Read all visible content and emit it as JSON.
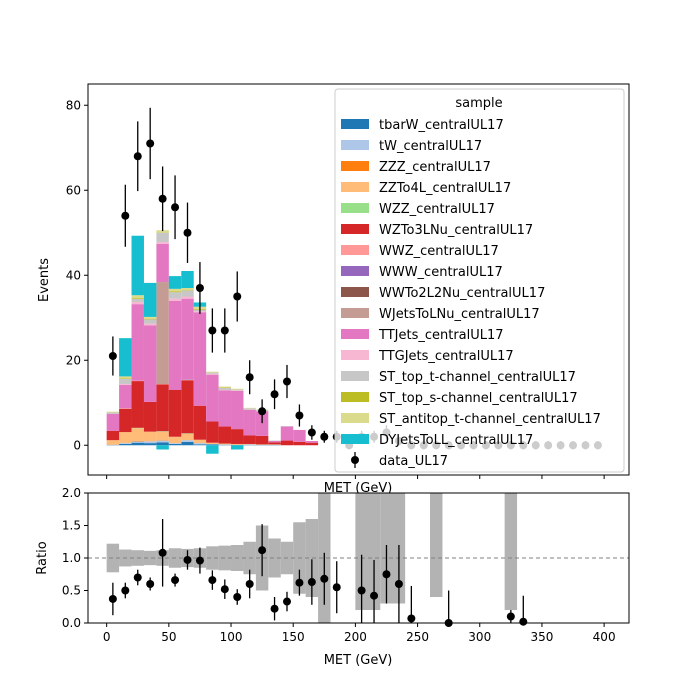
{
  "chart_data": [
    {
      "type": "bar",
      "subtype": "stacked-step-histogram-with-data-points",
      "ylabel": "Events",
      "xlabel": "MET (GeV)",
      "xlim": [
        -15,
        420
      ],
      "ylim": [
        -7,
        85
      ],
      "yticks": [
        0,
        20,
        40,
        60,
        80
      ],
      "legend": {
        "title": "sample",
        "placement": "top-right"
      },
      "bin_edges": [
        0,
        10,
        20,
        30,
        40,
        50,
        60,
        70,
        80,
        90,
        100,
        110,
        120,
        130,
        140,
        150,
        160,
        170,
        180
      ],
      "series": [
        {
          "name": "tbarW_centralUL17",
          "color": "#1f77b4",
          "values": [
            0.1,
            0.3,
            0.6,
            0.5,
            0.7,
            0.3,
            0.8,
            0.2,
            0.2,
            0.1,
            0.1,
            0.1,
            0.1,
            0.1,
            0,
            0,
            0,
            0
          ]
        },
        {
          "name": "tW_centralUL17",
          "color": "#aec7e8",
          "values": [
            0,
            0.2,
            0.3,
            0.4,
            0.4,
            0.2,
            0.4,
            0.3,
            0.1,
            0.1,
            0,
            0.1,
            0,
            0,
            0,
            0,
            0,
            0
          ]
        },
        {
          "name": "ZZZ_centralUL17",
          "color": "#ff7f0e",
          "values": [
            0,
            0,
            0.1,
            0,
            0.1,
            0,
            0,
            0,
            0,
            0,
            0,
            0,
            0,
            0,
            0,
            0,
            0,
            0
          ]
        },
        {
          "name": "ZZTo4L_centralUL17",
          "color": "#ffbb78",
          "values": [
            1.1,
            2.6,
            3.0,
            2.3,
            2.0,
            1.5,
            1.5,
            0.8,
            0.3,
            0.2,
            0.2,
            0.1,
            0.1,
            0.1,
            0,
            0,
            0,
            0
          ]
        },
        {
          "name": "WZZ_centralUL17",
          "color": "#98df8a",
          "values": [
            0,
            0,
            0.1,
            0,
            0.1,
            0,
            0.1,
            0,
            0,
            0,
            0,
            0,
            0,
            0,
            0,
            0,
            0,
            0
          ]
        },
        {
          "name": "WZTo3LNu_centralUL17",
          "color": "#d62728",
          "values": [
            2.2,
            5.5,
            11.0,
            7.0,
            11.0,
            11.0,
            12.5,
            8.0,
            5.0,
            4.0,
            3.5,
            2.0,
            2.0,
            0.5,
            1.1,
            0.8,
            0.6,
            0
          ]
        },
        {
          "name": "WWZ_centralUL17",
          "color": "#ff9896",
          "values": [
            0,
            0.1,
            0.1,
            0,
            0.1,
            0,
            0.1,
            0,
            0,
            0,
            0,
            0,
            0,
            0,
            0,
            0,
            0,
            0
          ]
        },
        {
          "name": "WWW_centralUL17",
          "color": "#9467bd",
          "values": [
            0,
            0,
            0,
            0,
            0,
            0,
            0.1,
            0,
            0,
            0,
            0,
            0,
            0,
            0,
            0,
            0,
            0,
            0
          ]
        },
        {
          "name": "WWTo2L2Nu_centralUL17",
          "color": "#8c564b",
          "values": [
            0,
            0,
            0,
            0,
            0,
            0,
            0,
            0,
            0,
            0,
            0,
            0,
            0,
            0,
            0,
            0,
            0,
            0
          ]
        },
        {
          "name": "WJetsToLNu_centralUL17",
          "color": "#c49c94",
          "values": [
            0,
            0,
            0,
            0,
            24.0,
            0,
            0,
            0,
            0,
            0,
            0,
            0,
            0,
            0,
            0,
            0,
            0,
            0
          ]
        },
        {
          "name": "TTJets_centralUL17",
          "color": "#e377c2",
          "values": [
            4.0,
            5.5,
            18.0,
            18.0,
            9.0,
            21.0,
            19.0,
            22.0,
            11.0,
            8.5,
            9.0,
            6.0,
            5.8,
            0.3,
            3.3,
            2.8,
            0.4,
            0
          ]
        },
        {
          "name": "TTGJets_centralUL17",
          "color": "#f7b6d2",
          "values": [
            0,
            0.2,
            0.5,
            0.4,
            0.4,
            0.5,
            0.5,
            0.2,
            0.2,
            0.1,
            0.1,
            0.1,
            0.1,
            0,
            0,
            0,
            0,
            0
          ]
        },
        {
          "name": "ST_top_t-channel_centralUL17",
          "color": "#c7c7c7",
          "values": [
            0.3,
            1.2,
            0.7,
            1.0,
            2.2,
            1.5,
            1.4,
            0.4,
            0.3,
            0.5,
            0.2,
            0.3,
            0.2,
            0.1,
            0.1,
            0,
            0,
            0
          ]
        },
        {
          "name": "ST_top_s-channel_centralUL17",
          "color": "#bcbd22",
          "values": [
            0,
            0.1,
            0.2,
            0.1,
            0.1,
            0.2,
            0.1,
            0.2,
            0,
            0.1,
            0,
            0,
            0,
            0,
            0,
            0,
            0,
            0
          ]
        },
        {
          "name": "ST_antitop_t-channel_centralUL17",
          "color": "#dbdb8d",
          "values": [
            0.2,
            0.5,
            0.7,
            0.5,
            0.5,
            0.6,
            0.5,
            0.5,
            0.2,
            0.2,
            0.2,
            0.1,
            0.1,
            0,
            0,
            0,
            0,
            0
          ]
        },
        {
          "name": "DYJetsToLL_centralUL17",
          "color": "#17becf",
          "values": [
            0,
            9.0,
            14.0,
            8.0,
            -1.0,
            3.0,
            4.0,
            1.0,
            -2.0,
            0,
            -1.0,
            0,
            0,
            0,
            0,
            0,
            0,
            0
          ]
        }
      ],
      "data_series": {
        "name": "data_UL17",
        "color": "#000000",
        "x": [
          5,
          15,
          25,
          35,
          45,
          55,
          65,
          75,
          85,
          95,
          105,
          115,
          125,
          135,
          145,
          155,
          165,
          175,
          185,
          195,
          205,
          215,
          225,
          235,
          245,
          255,
          265,
          275,
          285,
          295,
          305,
          315,
          325,
          335,
          345,
          355,
          365,
          375,
          385,
          395
        ],
        "y": [
          21,
          54,
          68,
          71,
          58,
          56,
          50,
          37,
          27,
          27,
          35,
          16,
          8,
          12,
          15,
          7,
          3,
          2,
          2,
          0,
          2,
          2,
          3,
          1,
          0,
          0,
          0,
          0,
          0,
          0,
          0,
          0,
          0,
          0,
          0,
          0,
          0,
          0,
          0,
          0
        ],
        "yerr": [
          4.6,
          7.3,
          8.2,
          8.4,
          7.6,
          7.5,
          7.1,
          6.1,
          5.2,
          5.2,
          5.9,
          4.0,
          2.8,
          3.5,
          3.9,
          2.6,
          1.7,
          1.4,
          1.4,
          1.0,
          1.4,
          1.4,
          1.7,
          1.0,
          1.0,
          1.0,
          1.0,
          1.0,
          1.0,
          1.0,
          1.0,
          1.0,
          1.0,
          1.0,
          1.0,
          1.0,
          1.0,
          1.0,
          1.0,
          1.0
        ]
      }
    },
    {
      "type": "scatter",
      "subtype": "ratio-panel",
      "ylabel": "Ratio",
      "xlabel": "MET (GeV)",
      "xlim": [
        -15,
        420
      ],
      "ylim": [
        0,
        2.0
      ],
      "xticks": [
        0,
        50,
        100,
        150,
        200,
        250,
        300,
        350,
        400
      ],
      "yticks": [
        "0.0",
        "0.5",
        "1.0",
        "1.5",
        "2.0"
      ],
      "reference_line": 1.0,
      "uncertainty_band": {
        "color": "#b3b3b3",
        "bins": [
          {
            "x0": 0,
            "x1": 10,
            "lo": 0.78,
            "hi": 1.22
          },
          {
            "x0": 10,
            "x1": 20,
            "lo": 0.87,
            "hi": 1.13
          },
          {
            "x0": 20,
            "x1": 30,
            "lo": 0.88,
            "hi": 1.12
          },
          {
            "x0": 30,
            "x1": 40,
            "lo": 0.89,
            "hi": 1.11
          },
          {
            "x0": 40,
            "x1": 50,
            "lo": 0.88,
            "hi": 1.12
          },
          {
            "x0": 50,
            "x1": 60,
            "lo": 0.85,
            "hi": 1.15
          },
          {
            "x0": 60,
            "x1": 70,
            "lo": 0.86,
            "hi": 1.14
          },
          {
            "x0": 70,
            "x1": 80,
            "lo": 0.85,
            "hi": 1.15
          },
          {
            "x0": 80,
            "x1": 90,
            "lo": 0.82,
            "hi": 1.18
          },
          {
            "x0": 90,
            "x1": 100,
            "lo": 0.81,
            "hi": 1.19
          },
          {
            "x0": 100,
            "x1": 110,
            "lo": 0.8,
            "hi": 1.2
          },
          {
            "x0": 110,
            "x1": 120,
            "lo": 0.75,
            "hi": 1.25
          },
          {
            "x0": 120,
            "x1": 130,
            "lo": 0.5,
            "hi": 1.5
          },
          {
            "x0": 130,
            "x1": 140,
            "lo": 0.7,
            "hi": 1.3
          },
          {
            "x0": 140,
            "x1": 150,
            "lo": 0.75,
            "hi": 1.25
          },
          {
            "x0": 150,
            "x1": 160,
            "lo": 0.45,
            "hi": 1.55
          },
          {
            "x0": 160,
            "x1": 170,
            "lo": 0.4,
            "hi": 1.6
          },
          {
            "x0": 170,
            "x1": 180,
            "lo": 0,
            "hi": 2.0
          },
          {
            "x0": 200,
            "x1": 220,
            "lo": 0.2,
            "hi": 2.0
          },
          {
            "x0": 220,
            "x1": 240,
            "lo": 0.3,
            "hi": 2.0
          },
          {
            "x0": 260,
            "x1": 270,
            "lo": 0.4,
            "hi": 2.0
          },
          {
            "x0": 320,
            "x1": 330,
            "lo": 0.2,
            "hi": 2.0
          }
        ]
      },
      "data_series": {
        "name": "data_UL17",
        "x": [
          5,
          15,
          25,
          35,
          45,
          55,
          65,
          75,
          85,
          95,
          105,
          115,
          125,
          135,
          145,
          155,
          165,
          175,
          185,
          205,
          215,
          225,
          235,
          245,
          275,
          325,
          335
        ],
        "y": [
          0.37,
          0.5,
          0.7,
          0.6,
          1.08,
          0.66,
          0.97,
          0.96,
          0.66,
          0.52,
          0.4,
          0.6,
          1.12,
          0.22,
          0.33,
          0.62,
          0.63,
          0.68,
          0.55,
          0.5,
          0.42,
          0.75,
          0.6,
          0.07,
          0.0,
          0.1,
          0.02
        ],
        "yerr": [
          0.25,
          0.12,
          0.12,
          0.1,
          0.52,
          0.1,
          0.15,
          0.2,
          0.15,
          0.15,
          0.12,
          0.22,
          0.4,
          0.18,
          0.15,
          0.2,
          0.35,
          0.4,
          0.4,
          0.55,
          0.55,
          0.45,
          0.6,
          0.5,
          0.5,
          0.1,
          0.4
        ]
      }
    }
  ]
}
